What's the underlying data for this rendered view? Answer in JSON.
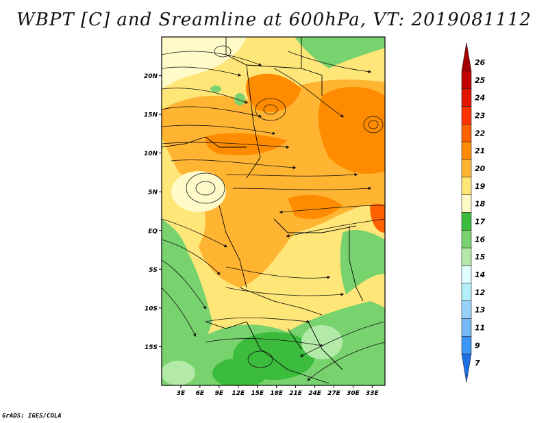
{
  "title": "WBPT [C] and Sreamline at 600hPa, VT: 2019081112",
  "credit": "GrADS: IGES/COLA",
  "map": {
    "lon_range": [
      0,
      35
    ],
    "lat_range": [
      -20,
      25
    ],
    "lat_ticks": [
      {
        "value": 20,
        "label": "20N"
      },
      {
        "value": 15,
        "label": "15N"
      },
      {
        "value": 10,
        "label": "10N"
      },
      {
        "value": 5,
        "label": "5N"
      },
      {
        "value": 0,
        "label": "EQ"
      },
      {
        "value": -5,
        "label": "5S"
      },
      {
        "value": -10,
        "label": "10S"
      },
      {
        "value": -15,
        "label": "15S"
      }
    ],
    "lon_ticks": [
      {
        "value": 3,
        "label": "3E"
      },
      {
        "value": 6,
        "label": "6E"
      },
      {
        "value": 9,
        "label": "9E"
      },
      {
        "value": 12,
        "label": "12E"
      },
      {
        "value": 15,
        "label": "15E"
      },
      {
        "value": 18,
        "label": "18E"
      },
      {
        "value": 21,
        "label": "21E"
      },
      {
        "value": 24,
        "label": "24E"
      },
      {
        "value": 27,
        "label": "27E"
      },
      {
        "value": 30,
        "label": "30E"
      },
      {
        "value": 33,
        "label": "33E"
      }
    ]
  },
  "colorbar": {
    "levels": [
      {
        "label": "26",
        "color": "#a50000"
      },
      {
        "label": "25",
        "color": "#c00000"
      },
      {
        "label": "24",
        "color": "#e11400"
      },
      {
        "label": "23",
        "color": "#ff3200"
      },
      {
        "label": "22",
        "color": "#ff6000"
      },
      {
        "label": "21",
        "color": "#ff8c00"
      },
      {
        "label": "20",
        "color": "#ffb432"
      },
      {
        "label": "19",
        "color": "#ffe678"
      },
      {
        "label": "18",
        "color": "#fffac8"
      },
      {
        "label": "17",
        "color": "#3cbc3d"
      },
      {
        "label": "16",
        "color": "#78d36e"
      },
      {
        "label": "15",
        "color": "#b4eaa8"
      },
      {
        "label": "14",
        "color": "#e1ffff"
      },
      {
        "label": "12",
        "color": "#b4f0fa"
      },
      {
        "label": "13",
        "color": "#96d2fa"
      },
      {
        "label": "11",
        "color": "#78b9fa"
      },
      {
        "label": "9",
        "color": "#3c96f5"
      },
      {
        "label": "7",
        "color": "#1e6ee6"
      }
    ]
  }
}
